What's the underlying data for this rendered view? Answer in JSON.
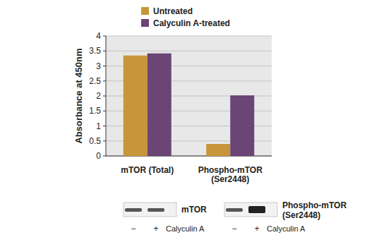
{
  "chart_data": {
    "type": "bar",
    "categories": [
      "mTOR (Total)",
      "Phospho-mTOR (Ser2448)"
    ],
    "series": [
      {
        "name": "Untreated",
        "color": "#c8953a",
        "values": [
          3.35,
          0.4
        ]
      },
      {
        "name": "Calyculin A-treated",
        "color": "#6a4575",
        "values": [
          3.42,
          2.02
        ]
      }
    ],
    "y_label": "Absorbance at 450nm",
    "ylim": [
      0,
      4
    ],
    "yticks": [
      0,
      0.5,
      1,
      1.5,
      2,
      2.5,
      3,
      3.5,
      4
    ],
    "grid": true,
    "legend": "top"
  },
  "blots": [
    {
      "label": "mTOR",
      "lanes": [
        "−",
        "+"
      ],
      "treatment": "Calyculin A"
    },
    {
      "label": "Phospho-mTOR (Ser2448)",
      "lanes": [
        "−",
        "+"
      ],
      "treatment": "Calyculin A"
    }
  ]
}
